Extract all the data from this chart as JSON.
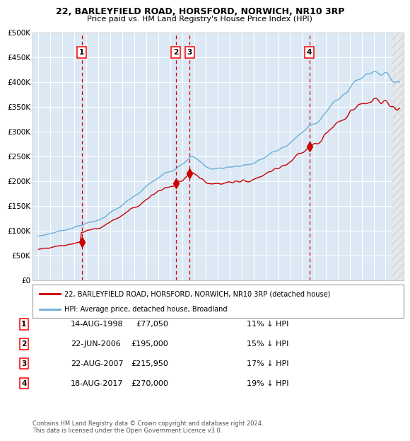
{
  "title1": "22, BARLEYFIELD ROAD, HORSFORD, NORWICH, NR10 3RP",
  "title2": "Price paid vs. HM Land Registry's House Price Index (HPI)",
  "legend_property": "22, BARLEYFIELD ROAD, HORSFORD, NORWICH, NR10 3RP (detached house)",
  "legend_hpi": "HPI: Average price, detached house, Broadland",
  "footer": "Contains HM Land Registry data © Crown copyright and database right 2024.\nThis data is licensed under the Open Government Licence v3.0.",
  "sales": [
    {
      "num": 1,
      "date": "14-AUG-1998",
      "date_x": 1998.62,
      "price": 77050,
      "label": "1",
      "pct": "11% ↓ HPI"
    },
    {
      "num": 2,
      "date": "22-JUN-2006",
      "date_x": 2006.47,
      "price": 195000,
      "label": "2",
      "pct": "15% ↓ HPI"
    },
    {
      "num": 3,
      "date": "22-AUG-2007",
      "date_x": 2007.64,
      "price": 215950,
      "label": "3",
      "pct": "17% ↓ HPI"
    },
    {
      "num": 4,
      "date": "18-AUG-2017",
      "date_x": 2017.63,
      "price": 270000,
      "label": "4",
      "pct": "19% ↓ HPI"
    }
  ],
  "ylim": [
    0,
    500000
  ],
  "xlim": [
    1994.5,
    2025.5
  ],
  "yticks": [
    0,
    50000,
    100000,
    150000,
    200000,
    250000,
    300000,
    350000,
    400000,
    450000,
    500000
  ],
  "ytick_labels": [
    "£0",
    "£50K",
    "£100K",
    "£150K",
    "£200K",
    "£250K",
    "£300K",
    "£350K",
    "£400K",
    "£450K",
    "£500K"
  ],
  "xticks": [
    1995,
    1996,
    1997,
    1998,
    1999,
    2000,
    2001,
    2002,
    2003,
    2004,
    2005,
    2006,
    2007,
    2008,
    2009,
    2010,
    2011,
    2012,
    2013,
    2014,
    2015,
    2016,
    2017,
    2018,
    2019,
    2020,
    2021,
    2022,
    2023,
    2024,
    2025
  ],
  "bg_color": "#dce9f5",
  "hpi_color": "#6baed6",
  "property_color": "#cc0000",
  "vline_color": "#cc0000",
  "grid_color": "#ffffff",
  "hatch_region_start": 2024.5
}
